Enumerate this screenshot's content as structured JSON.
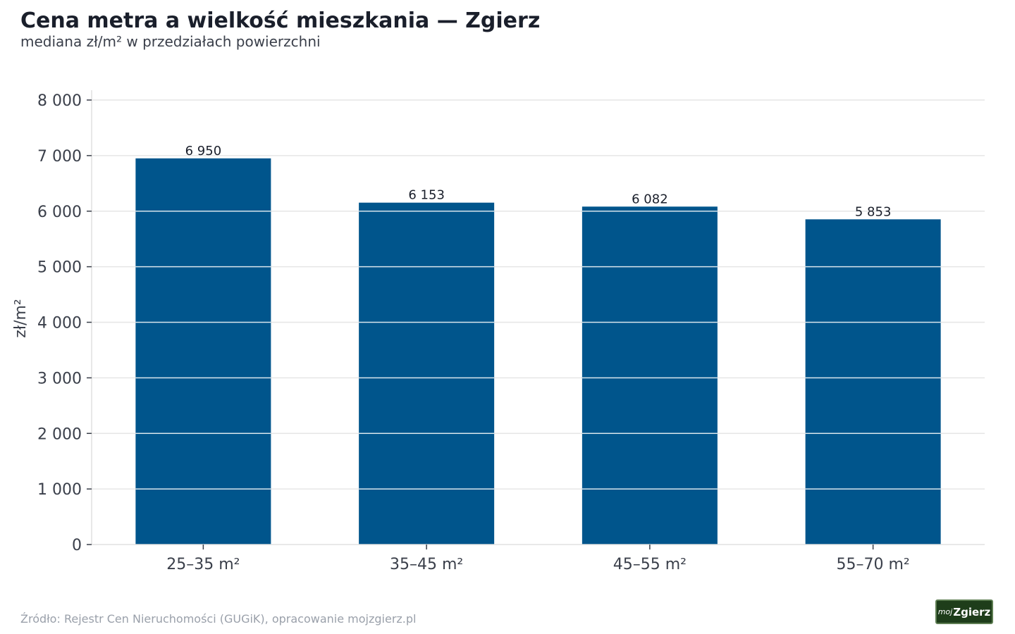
{
  "chart_data": {
    "type": "bar",
    "title": "Cena metra a wielkość mieszkania — Zgierz",
    "subtitle": "mediana zł/m² w przedziałach powierzchni",
    "ylabel": "zł/m²",
    "xlabel": "",
    "categories": [
      "25–35 m²",
      "35–45 m²",
      "45–55 m²",
      "55–70 m²"
    ],
    "values": [
      6950,
      6153,
      6082,
      5853
    ],
    "data_labels": [
      "6 950",
      "6 153",
      "6 082",
      "5 853"
    ],
    "yticks": [
      0,
      1000,
      2000,
      3000,
      4000,
      5000,
      6000,
      7000,
      8000
    ],
    "ytick_labels": [
      "0",
      "1 000",
      "2 000",
      "3 000",
      "4 000",
      "5 000",
      "6 000",
      "7 000",
      "8 000"
    ],
    "ylim": [
      0,
      8000
    ],
    "grid": true,
    "bar_color": "#00558c",
    "grid_color": "#e6e6e6"
  },
  "footer": {
    "source": "Źródło: Rejestr Cen Nieruchomości (GUGiK), opracowanie mojzgierz.pl"
  },
  "logo": {
    "prefix": "moj",
    "name": "Zgierz",
    "background": "#1e3d1a"
  }
}
